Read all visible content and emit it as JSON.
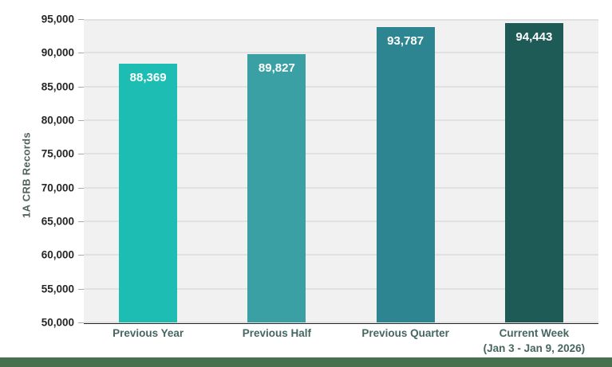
{
  "page": {
    "background": "#ffffff"
  },
  "chart_data": {
    "type": "bar",
    "title": "",
    "xlabel": "",
    "ylabel": "1A CRB Records",
    "categories": [
      "Previous Year",
      "Previous Half",
      "Previous Quarter",
      "Current Week"
    ],
    "category_sublabels": [
      "",
      "",
      "",
      "(Jan 3 - Jan 9, 2026)"
    ],
    "values": [
      88369,
      89827,
      93787,
      94443
    ],
    "value_labels": [
      "88,369",
      "89,827",
      "93,787",
      "94,443"
    ],
    "ylim": [
      50000,
      95000
    ],
    "ytick_step": 5000,
    "ytick_labels": [
      "95,000",
      "90,000",
      "85,000",
      "80,000",
      "75,000",
      "70,000",
      "65,000",
      "60,000",
      "55,000",
      "50,000"
    ],
    "grid": true,
    "legend": "none",
    "bar_colors": [
      "#1dbdb3",
      "#3aa0a3",
      "#2c8590",
      "#1e5a56"
    ],
    "plot_background": "#f1f1f1",
    "gridline_color": "#e1e1e1",
    "axis_line_color": "#262626",
    "tick_color": "#a8a8a8",
    "ytick_label_color": "#262626",
    "xlabel_color": "#466660",
    "ytitle_color": "#50635d",
    "value_label_color": "#ffffff",
    "bottom_strip_color": "#47714e"
  }
}
